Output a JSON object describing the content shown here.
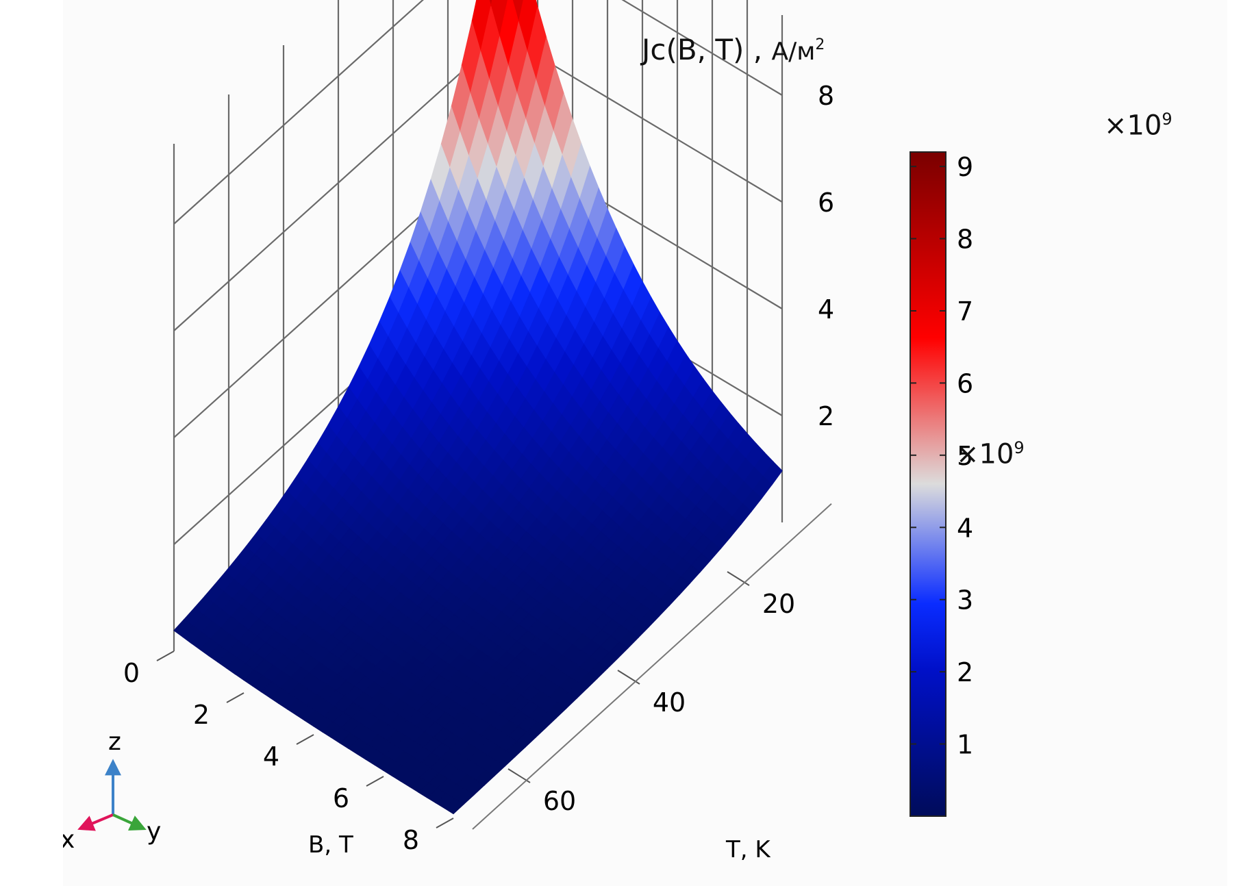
{
  "chart_data": {
    "type": "surface",
    "title": "Jc(B, T)",
    "title_unit": "A/м",
    "title_unit_exp": "2",
    "x_axis": {
      "label": "B, T",
      "ticks": [
        "0",
        "2",
        "4",
        "6",
        "8"
      ],
      "range": [
        0,
        8
      ]
    },
    "y_axis": {
      "label": "T, K",
      "ticks": [
        "20",
        "40",
        "60"
      ],
      "range": [
        10,
        70
      ]
    },
    "z_axis": {
      "ticks": [
        "2",
        "4",
        "6",
        "8"
      ],
      "multiplier_base": "×10",
      "multiplier_exp": "9",
      "range": [
        0,
        9.2
      ]
    },
    "colorbar": {
      "ticks": [
        "1",
        "2",
        "3",
        "4",
        "5",
        "6",
        "7",
        "8",
        "9"
      ],
      "multiplier_base": "×10",
      "multiplier_exp": "9",
      "range": [
        0,
        9.2
      ],
      "colormap": [
        "#000c5a",
        "#0010c8",
        "#0a2cff",
        "#dcdcdc",
        "#ff0000",
        "#7a0000"
      ]
    },
    "surface_corners": [
      {
        "B": 0,
        "T": 10,
        "Jc": 9.2
      },
      {
        "B": 8,
        "T": 10,
        "Jc": 1.2
      },
      {
        "B": 0,
        "T": 70,
        "Jc": 1.1
      },
      {
        "B": 8,
        "T": 70,
        "Jc": 0.05
      }
    ],
    "grid": true,
    "triad": {
      "x": "x",
      "y": "y",
      "z": "z"
    }
  }
}
